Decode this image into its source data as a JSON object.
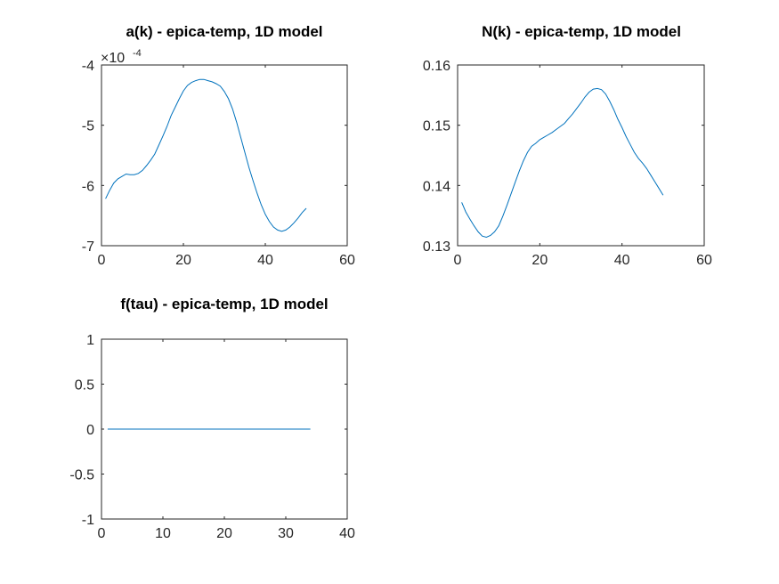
{
  "figure": {
    "background": "#ffffff",
    "line_color": "#0072bd",
    "axis_color": "#262626"
  },
  "chart_data": [
    {
      "id": "ak",
      "type": "line",
      "title": "a(k) - epica-temp, 1D model",
      "xlim": [
        0,
        60
      ],
      "ylim": [
        -7,
        -4
      ],
      "xticks": [
        0,
        20,
        40,
        60
      ],
      "yticks": [
        -7,
        -6,
        -5,
        -4
      ],
      "xtick_labels": [
        "0",
        "20",
        "40",
        "60"
      ],
      "ytick_labels": [
        "-7",
        "-6",
        "-5",
        "-4"
      ],
      "exponent_label": {
        "base": "×10",
        "power": "-4"
      },
      "series": [
        {
          "x": [
            1,
            2,
            3,
            4,
            5,
            6,
            7,
            8,
            9,
            10,
            11,
            12,
            13,
            14,
            15,
            16,
            17,
            18,
            19,
            20,
            21,
            22,
            23,
            24,
            25,
            26,
            27,
            28,
            29,
            30,
            31,
            32,
            33,
            34,
            35,
            36,
            37,
            38,
            39,
            40,
            41,
            42,
            43,
            44,
            45,
            46,
            47,
            48,
            49,
            50
          ],
          "y": [
            -6.22,
            -6.08,
            -5.96,
            -5.89,
            -5.85,
            -5.81,
            -5.82,
            -5.82,
            -5.8,
            -5.75,
            -5.67,
            -5.58,
            -5.48,
            -5.33,
            -5.18,
            -5.02,
            -4.84,
            -4.7,
            -4.56,
            -4.43,
            -4.34,
            -4.29,
            -4.26,
            -4.24,
            -4.24,
            -4.26,
            -4.28,
            -4.31,
            -4.35,
            -4.44,
            -4.56,
            -4.73,
            -4.95,
            -5.2,
            -5.45,
            -5.7,
            -5.92,
            -6.13,
            -6.32,
            -6.48,
            -6.6,
            -6.69,
            -6.74,
            -6.76,
            -6.74,
            -6.69,
            -6.62,
            -6.54,
            -6.45,
            -6.38
          ]
        }
      ]
    },
    {
      "id": "Nk",
      "type": "line",
      "title": "N(k) - epica-temp, 1D model",
      "xlim": [
        0,
        60
      ],
      "ylim": [
        0.13,
        0.16
      ],
      "xticks": [
        0,
        20,
        40,
        60
      ],
      "yticks": [
        0.13,
        0.14,
        0.15,
        0.16
      ],
      "xtick_labels": [
        "0",
        "20",
        "40",
        "60"
      ],
      "ytick_labels": [
        "0.13",
        "0.14",
        "0.15",
        "0.16"
      ],
      "series": [
        {
          "x": [
            1,
            2,
            3,
            4,
            5,
            6,
            7,
            8,
            9,
            10,
            11,
            12,
            13,
            14,
            15,
            16,
            17,
            18,
            19,
            20,
            21,
            22,
            23,
            24,
            25,
            26,
            27,
            28,
            29,
            30,
            31,
            32,
            33,
            34,
            35,
            36,
            37,
            38,
            39,
            40,
            41,
            42,
            43,
            44,
            45,
            46,
            47,
            48,
            49,
            50
          ],
          "y": [
            0.1372,
            0.1356,
            0.1344,
            0.1333,
            0.1323,
            0.1316,
            0.1314,
            0.1317,
            0.1323,
            0.1333,
            0.1349,
            0.1367,
            0.1386,
            0.1405,
            0.1424,
            0.1441,
            0.1455,
            0.1465,
            0.147,
            0.1476,
            0.148,
            0.1484,
            0.1488,
            0.1493,
            0.1498,
            0.1503,
            0.1511,
            0.1519,
            0.1528,
            0.1537,
            0.1547,
            0.1555,
            0.156,
            0.1561,
            0.1559,
            0.1552,
            0.154,
            0.1526,
            0.151,
            0.1496,
            0.1481,
            0.1468,
            0.1455,
            0.1445,
            0.1437,
            0.1428,
            0.1417,
            0.1406,
            0.1395,
            0.1384
          ]
        }
      ]
    },
    {
      "id": "ftau",
      "type": "line",
      "title": "f(tau) - epica-temp, 1D model",
      "xlim": [
        0,
        40
      ],
      "ylim": [
        -1,
        1
      ],
      "xticks": [
        0,
        10,
        20,
        30,
        40
      ],
      "yticks": [
        -1,
        -0.5,
        0,
        0.5,
        1
      ],
      "xtick_labels": [
        "0",
        "10",
        "20",
        "30",
        "40"
      ],
      "ytick_labels": [
        "-1",
        "-0.5",
        "0",
        "0.5",
        "1"
      ],
      "series": [
        {
          "x": [
            1,
            34
          ],
          "y": [
            0,
            0
          ]
        }
      ]
    }
  ]
}
